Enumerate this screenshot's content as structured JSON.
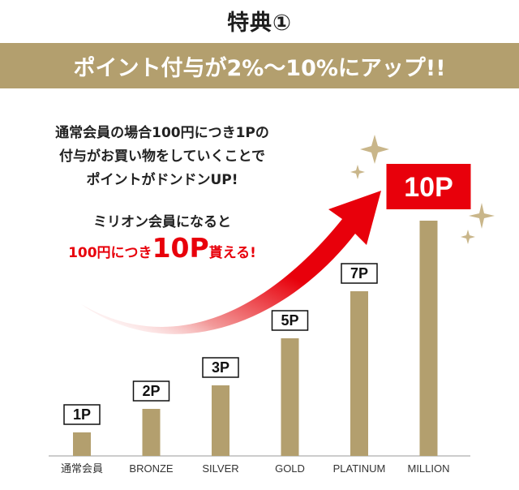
{
  "header": {
    "title": "特典①",
    "banner": "ポイント付与が2%〜10%にアップ!!"
  },
  "description": {
    "lines": [
      "通常会員の場合100円につき1Pの",
      "付与がお買い物をしていくことで",
      "ポイントがドンドンUP!"
    ],
    "member_line": "ミリオン会員になると",
    "rate_prefix": "100円につき",
    "rate_value": "10P",
    "rate_suffix": "貰える!"
  },
  "colors": {
    "bar": "#b39f6e",
    "banner": "#b39f6e",
    "accent_red": "#e8000b",
    "sparkle": "#c9b68a"
  },
  "chart_data": {
    "type": "bar",
    "categories": [
      "通常会員",
      "BRONZE",
      "SILVER",
      "GOLD",
      "PLATINUM",
      "MILLION"
    ],
    "values": [
      1,
      2,
      3,
      5,
      7,
      10
    ],
    "value_labels": [
      "1P",
      "2P",
      "3P",
      "5P",
      "7P",
      "10P"
    ],
    "ylim": [
      0,
      10
    ],
    "grid": false,
    "title": "",
    "xlabel": "",
    "ylabel": ""
  }
}
